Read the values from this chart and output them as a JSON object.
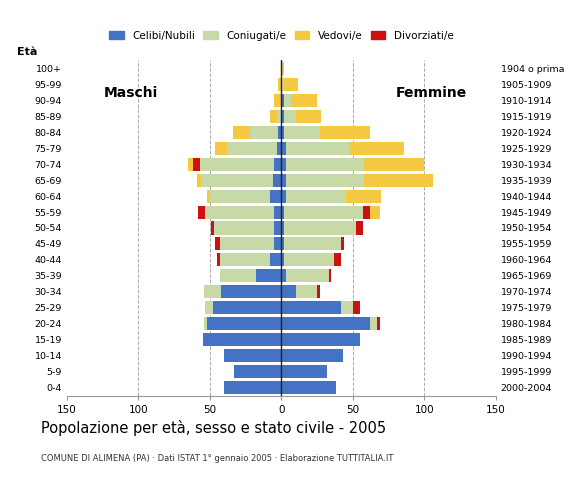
{
  "title": "Popolazione per età, sesso e stato civile - 2005",
  "subtitle": "COMUNE DI ALIMENA (PA) · Dati ISTAT 1° gennaio 2005 · Elaborazione TUTTITALIA.IT",
  "ylabel_left": "Età",
  "age_groups": [
    "0-4",
    "5-9",
    "10-14",
    "15-19",
    "20-24",
    "25-29",
    "30-34",
    "35-39",
    "40-44",
    "45-49",
    "50-54",
    "55-59",
    "60-64",
    "65-69",
    "70-74",
    "75-79",
    "80-84",
    "85-89",
    "90-94",
    "95-99",
    "100+"
  ],
  "birth_years": [
    "2000-2004",
    "1995-1999",
    "1990-1994",
    "1985-1989",
    "1980-1984",
    "1975-1979",
    "1970-1974",
    "1965-1969",
    "1960-1964",
    "1955-1959",
    "1950-1954",
    "1945-1949",
    "1940-1944",
    "1935-1939",
    "1930-1934",
    "1925-1929",
    "1920-1924",
    "1915-1919",
    "1910-1914",
    "1905-1909",
    "1904 o prima"
  ],
  "colors": {
    "celibe": "#4472C4",
    "coniugato": "#c8d9a8",
    "vedovo": "#f5c842",
    "divorziato": "#cc1111"
  },
  "legend_labels": [
    "Celibi/Nubili",
    "Coniugati/e",
    "Vedovi/e",
    "Divorziati/e"
  ],
  "males": {
    "celibe": [
      40,
      33,
      40,
      55,
      52,
      48,
      42,
      18,
      8,
      5,
      5,
      5,
      8,
      6,
      5,
      3,
      2,
      0,
      0,
      0,
      0
    ],
    "coniugato": [
      0,
      0,
      0,
      0,
      2,
      5,
      12,
      25,
      35,
      38,
      42,
      48,
      42,
      50,
      52,
      35,
      20,
      3,
      0,
      0,
      0
    ],
    "vedovo": [
      0,
      0,
      0,
      0,
      0,
      0,
      0,
      0,
      0,
      0,
      0,
      0,
      2,
      3,
      8,
      8,
      12,
      5,
      5,
      2,
      0
    ],
    "divorziato": [
      0,
      0,
      0,
      0,
      0,
      0,
      0,
      0,
      2,
      3,
      2,
      5,
      0,
      0,
      5,
      0,
      0,
      0,
      0,
      0,
      0
    ]
  },
  "females": {
    "nubile": [
      38,
      32,
      43,
      55,
      62,
      42,
      10,
      3,
      2,
      2,
      2,
      2,
      3,
      3,
      3,
      3,
      2,
      2,
      2,
      0,
      0
    ],
    "coniugata": [
      0,
      0,
      0,
      0,
      5,
      8,
      15,
      30,
      35,
      40,
      50,
      55,
      42,
      55,
      55,
      45,
      25,
      8,
      5,
      2,
      0
    ],
    "vedova": [
      0,
      0,
      0,
      0,
      0,
      0,
      0,
      0,
      2,
      2,
      5,
      12,
      25,
      48,
      42,
      38,
      35,
      18,
      18,
      10,
      2
    ],
    "divorziata": [
      0,
      0,
      0,
      0,
      2,
      5,
      2,
      2,
      5,
      2,
      5,
      5,
      0,
      0,
      0,
      0,
      0,
      0,
      0,
      0,
      0
    ]
  },
  "xlim": 150,
  "background_color": "#ffffff",
  "grid_color": "#aaaaaa",
  "label_maschi": "Maschi",
  "label_femmine": "Femmine"
}
